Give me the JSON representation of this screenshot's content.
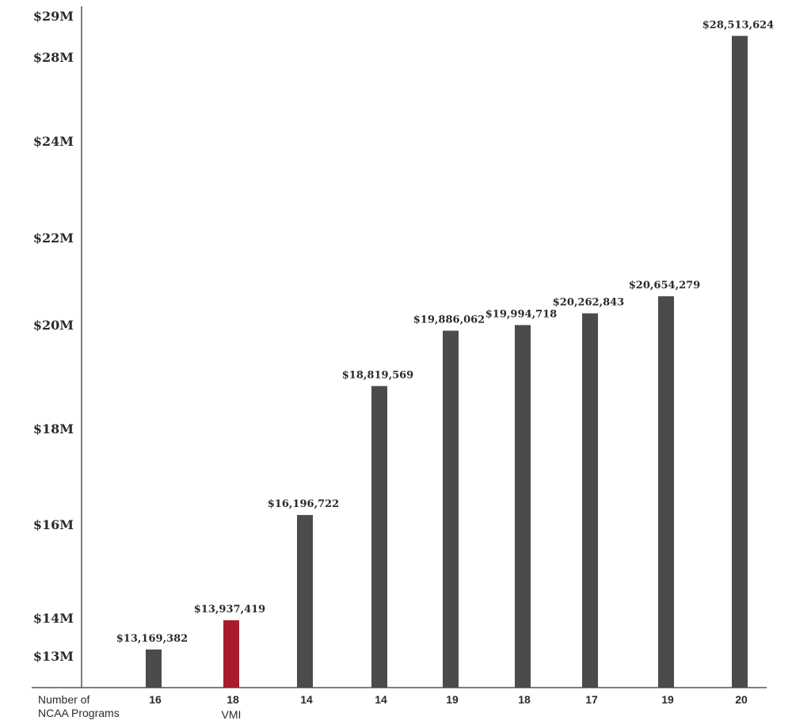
{
  "chart_data": {
    "type": "bar",
    "x_row_header": [
      "Number of",
      "NCAA Programs"
    ],
    "categories": [
      "16",
      "18",
      "14",
      "14",
      "19",
      "18",
      "17",
      "19",
      "20"
    ],
    "category_sublabels": [
      "",
      "VMI",
      "",
      "",
      "",
      "",
      "",
      "",
      ""
    ],
    "values": [
      13169382,
      13937419,
      16196722,
      18819569,
      19886062,
      19994718,
      20262843,
      20654279,
      28513624
    ],
    "value_labels": [
      "$13,169,382",
      "$13,937,419",
      "$16,196,722",
      "$18,819,569",
      "$19,886,062",
      "$19,994,718",
      "$20,262,843",
      "$20,654,279",
      "$28,513,624"
    ],
    "y_ticks": [
      {
        "value": 13000000,
        "label": "$13M"
      },
      {
        "value": 14000000,
        "label": "$14M"
      },
      {
        "value": 16000000,
        "label": "$16M"
      },
      {
        "value": 18000000,
        "label": "$18M"
      },
      {
        "value": 20000000,
        "label": "$20M"
      },
      {
        "value": 22000000,
        "label": "$22M"
      },
      {
        "value": 24000000,
        "label": "$24M"
      },
      {
        "value": 28000000,
        "label": "$28M"
      },
      {
        "value": 29000000,
        "label": "$29M"
      }
    ],
    "ylim": [
      12000000,
      29000000
    ],
    "grid": false,
    "legend": "none",
    "colors": {
      "bar": "#4a4b4d",
      "highlight": "#a81c2e",
      "axis": "#555555"
    },
    "highlight_index": 1
  }
}
